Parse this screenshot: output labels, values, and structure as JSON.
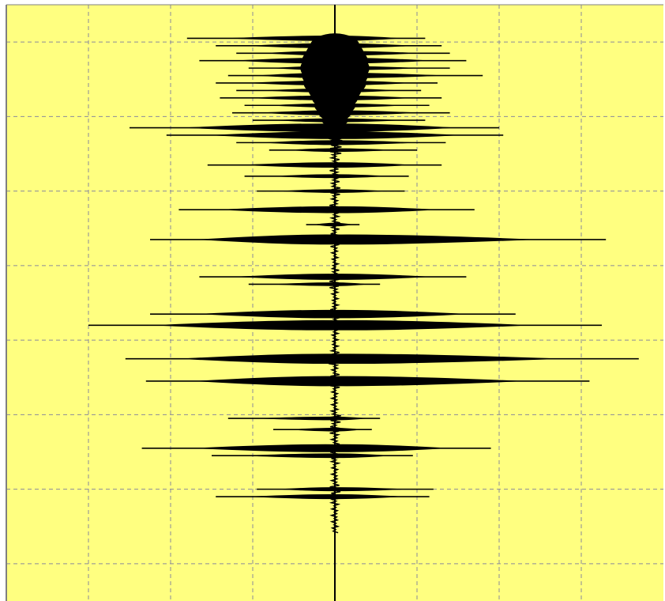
{
  "chart_data": {
    "type": "line",
    "title": "",
    "xlabel": "",
    "ylabel": "",
    "orientation": "vertical-trace",
    "grid": true,
    "grid_style": "dashed",
    "background_color": "#ffff80",
    "grid_color": "#8a8a9a",
    "trace_color": "#000000",
    "frame_color": "#7f7f7f",
    "xlim": [
      -4,
      4
    ],
    "ylim": [
      0,
      8
    ],
    "x_gridlines": [
      -3,
      -2,
      -1,
      0,
      1,
      2,
      3
    ],
    "y_gridlines": [
      0.5,
      1.5,
      2.5,
      3.5,
      4.5,
      5.5,
      6.5,
      7.5
    ],
    "center_line": 0,
    "series": [
      {
        "values": [
          {
            "t": 0.45,
            "left": 1.8,
            "right": 1.1,
            "core": 0.12
          },
          {
            "t": 0.55,
            "left": 1.45,
            "right": 1.3,
            "core": 0.3
          },
          {
            "t": 0.65,
            "left": 1.2,
            "right": 1.4,
            "core": 0.35
          },
          {
            "t": 0.75,
            "left": 1.65,
            "right": 1.6,
            "core": 0.4
          },
          {
            "t": 0.85,
            "left": 1.05,
            "right": 1.4,
            "core": 0.42
          },
          {
            "t": 0.95,
            "left": 1.3,
            "right": 1.8,
            "core": 0.4
          },
          {
            "t": 1.05,
            "left": 1.45,
            "right": 1.25,
            "core": 0.38
          },
          {
            "t": 1.15,
            "left": 1.2,
            "right": 1.05,
            "core": 0.32
          },
          {
            "t": 1.25,
            "left": 1.4,
            "right": 1.3,
            "core": 0.28
          },
          {
            "t": 1.35,
            "left": 1.1,
            "right": 1.15,
            "core": 0.25
          },
          {
            "t": 1.45,
            "left": 1.25,
            "right": 1.4,
            "core": 0.2
          },
          {
            "t": 1.55,
            "left": 1.0,
            "right": 1.1,
            "core": 0.16
          },
          {
            "t": 1.65,
            "left": 2.5,
            "right": 2.0,
            "core": 0.15
          },
          {
            "t": 1.75,
            "left": 2.05,
            "right": 2.05,
            "core": 0.12
          },
          {
            "t": 1.85,
            "left": 1.2,
            "right": 1.35,
            "core": 0.08
          },
          {
            "t": 1.95,
            "left": 0.8,
            "right": 1.0,
            "core": 0.06
          },
          {
            "t": 2.15,
            "left": 1.55,
            "right": 1.3,
            "core": 0.06
          },
          {
            "t": 2.3,
            "left": 1.1,
            "right": 0.9,
            "core": 0.05
          },
          {
            "t": 2.5,
            "left": 0.95,
            "right": 0.85,
            "core": 0.04
          },
          {
            "t": 2.75,
            "left": 1.9,
            "right": 1.7,
            "core": 0.05
          },
          {
            "t": 2.95,
            "left": 0.35,
            "right": 0.3,
            "core": 0.03
          },
          {
            "t": 3.15,
            "left": 2.25,
            "right": 3.3,
            "core": 0.06
          },
          {
            "t": 3.65,
            "left": 1.65,
            "right": 1.6,
            "core": 0.05
          },
          {
            "t": 3.75,
            "left": 1.05,
            "right": 0.55,
            "core": 0.04
          },
          {
            "t": 4.15,
            "left": 2.25,
            "right": 2.2,
            "core": 0.06
          },
          {
            "t": 4.3,
            "left": 3.0,
            "right": 3.25,
            "core": 0.05
          },
          {
            "t": 4.75,
            "left": 2.55,
            "right": 3.7,
            "core": 0.08
          },
          {
            "t": 5.05,
            "left": 2.3,
            "right": 3.1,
            "core": 0.07
          },
          {
            "t": 5.55,
            "left": 1.3,
            "right": 0.55,
            "core": 0.05
          },
          {
            "t": 5.7,
            "left": 0.75,
            "right": 0.45,
            "core": 0.04
          },
          {
            "t": 5.95,
            "left": 2.35,
            "right": 1.9,
            "core": 0.06
          },
          {
            "t": 6.05,
            "left": 1.5,
            "right": 0.95,
            "core": 0.05
          },
          {
            "t": 6.5,
            "left": 0.95,
            "right": 1.2,
            "core": 0.04
          },
          {
            "t": 6.6,
            "left": 1.45,
            "right": 1.15,
            "core": 0.04
          }
        ]
      }
    ]
  }
}
